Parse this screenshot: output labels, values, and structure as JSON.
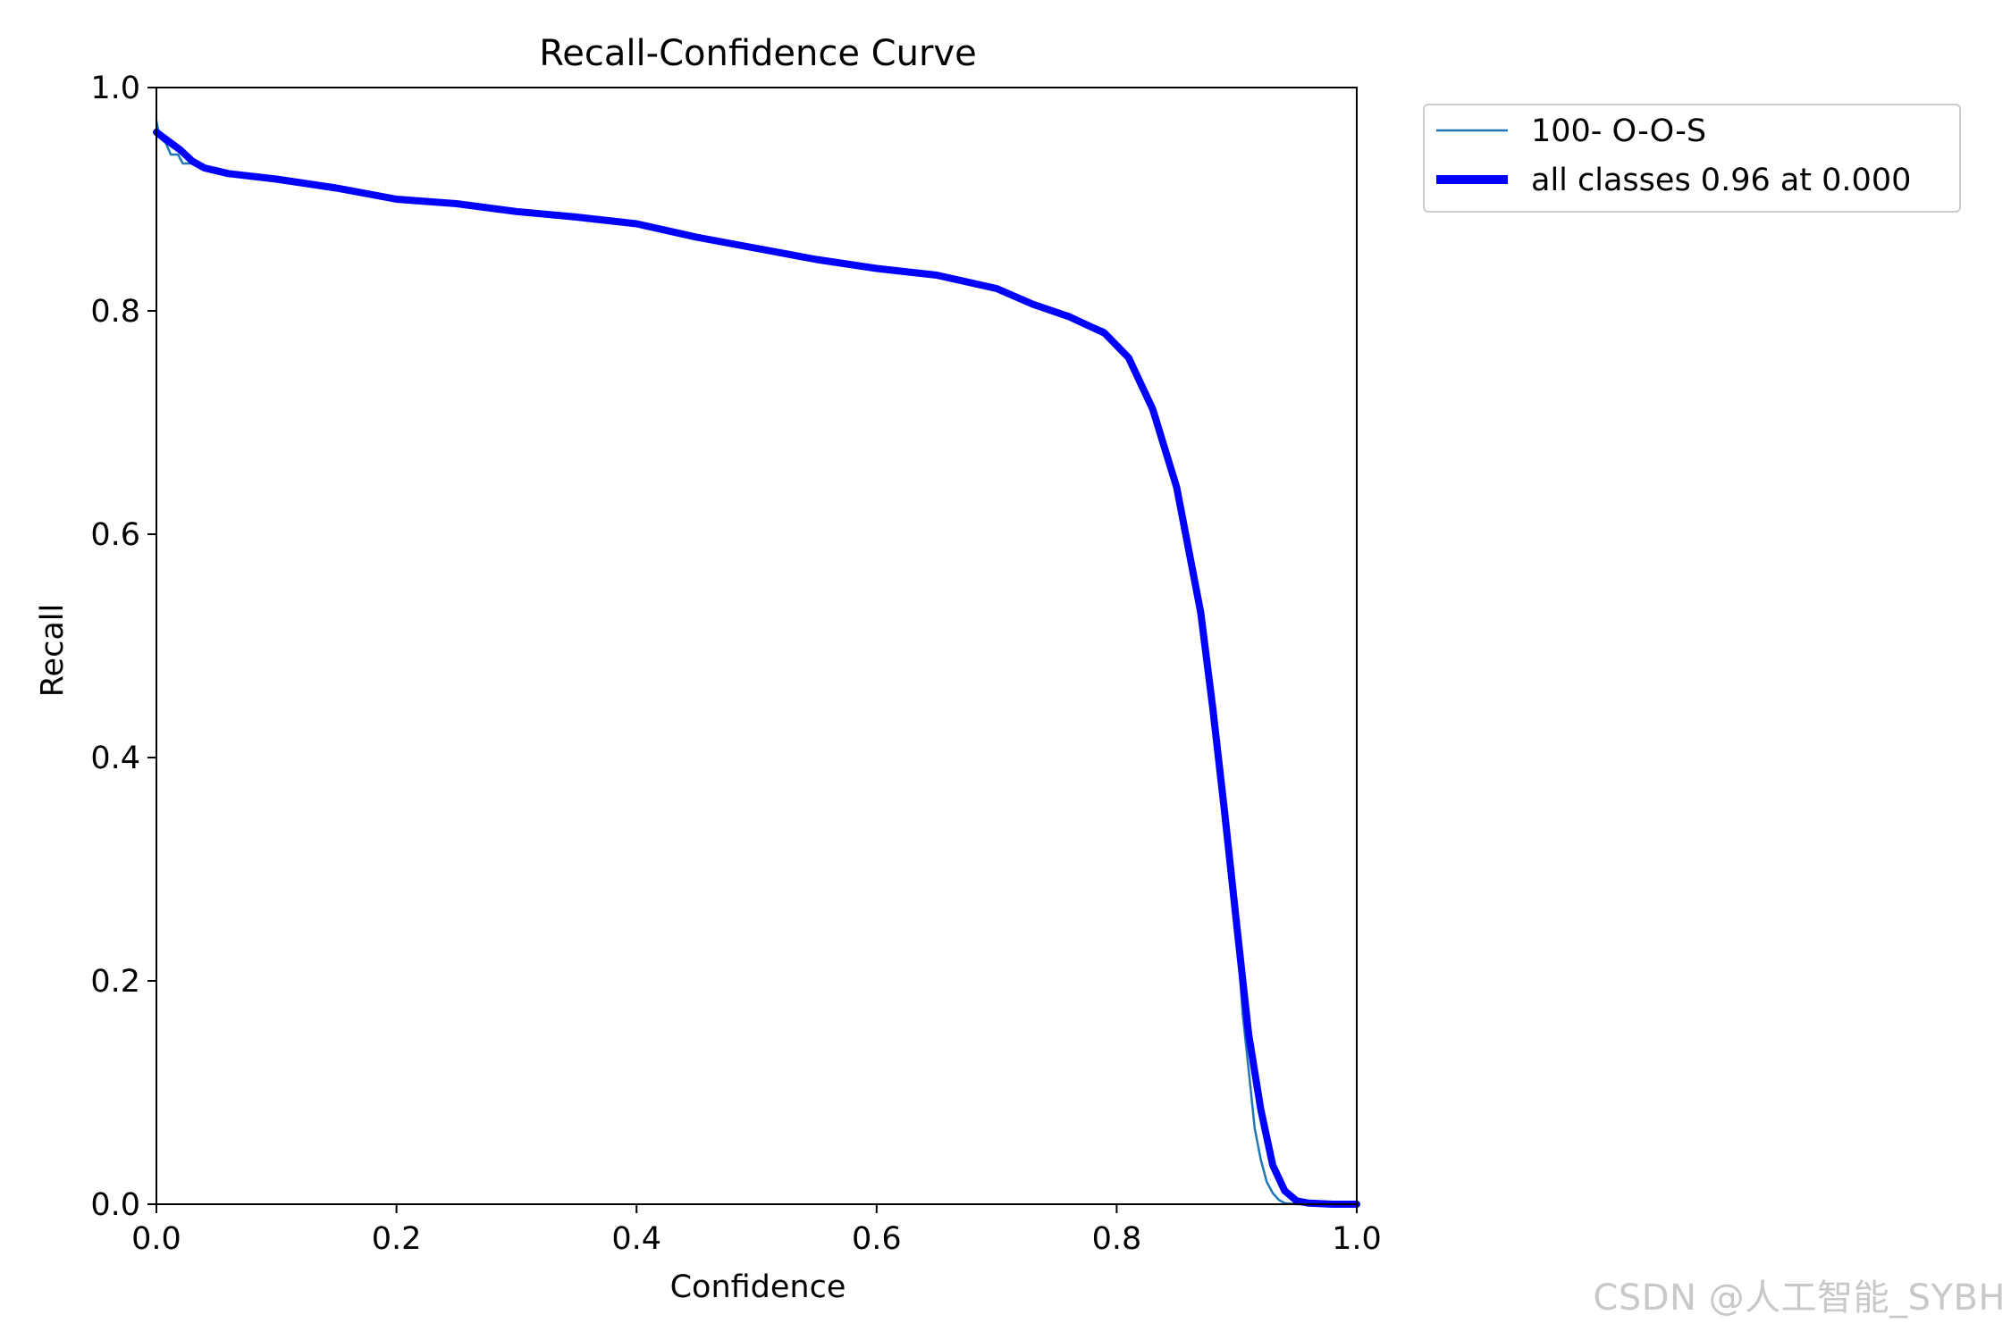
{
  "chart_data": {
    "type": "line",
    "title": "Recall-Confidence Curve",
    "xlabel": "Confidence",
    "ylabel": "Recall",
    "xlim": [
      0,
      1
    ],
    "ylim": [
      0,
      1
    ],
    "x_ticks": [
      "0.0",
      "0.2",
      "0.4",
      "0.6",
      "0.8",
      "1.0"
    ],
    "y_ticks": [
      "0.0",
      "0.2",
      "0.4",
      "0.6",
      "0.8",
      "1.0"
    ],
    "grid": false,
    "legend_position": "outside-top-right",
    "series": [
      {
        "name": "100- O-O-S",
        "color": "#1f77b4",
        "points": [
          [
            0.0,
            0.97
          ],
          [
            0.003,
            0.955
          ],
          [
            0.008,
            0.95
          ],
          [
            0.012,
            0.94
          ],
          [
            0.018,
            0.94
          ],
          [
            0.022,
            0.932
          ],
          [
            0.03,
            0.932
          ],
          [
            0.04,
            0.926
          ],
          [
            0.06,
            0.923
          ],
          [
            0.1,
            0.918
          ],
          [
            0.15,
            0.91
          ],
          [
            0.2,
            0.9
          ],
          [
            0.25,
            0.896
          ],
          [
            0.3,
            0.889
          ],
          [
            0.35,
            0.884
          ],
          [
            0.4,
            0.878
          ],
          [
            0.45,
            0.866
          ],
          [
            0.5,
            0.856
          ],
          [
            0.55,
            0.846
          ],
          [
            0.6,
            0.838
          ],
          [
            0.65,
            0.832
          ],
          [
            0.7,
            0.82
          ],
          [
            0.75,
            0.8
          ],
          [
            0.79,
            0.783
          ],
          [
            0.81,
            0.76
          ],
          [
            0.83,
            0.716
          ],
          [
            0.85,
            0.645
          ],
          [
            0.87,
            0.53
          ],
          [
            0.88,
            0.445
          ],
          [
            0.89,
            0.35
          ],
          [
            0.9,
            0.245
          ],
          [
            0.905,
            0.17
          ],
          [
            0.91,
            0.12
          ],
          [
            0.915,
            0.068
          ],
          [
            0.92,
            0.04
          ],
          [
            0.925,
            0.02
          ],
          [
            0.93,
            0.01
          ],
          [
            0.935,
            0.004
          ],
          [
            0.94,
            0.001
          ],
          [
            0.95,
            0.0
          ],
          [
            1.0,
            0.0
          ]
        ]
      },
      {
        "name": "all classes 0.96 at 0.000",
        "color": "#0000ff",
        "points": [
          [
            0.0,
            0.96
          ],
          [
            0.01,
            0.952
          ],
          [
            0.02,
            0.944
          ],
          [
            0.03,
            0.934
          ],
          [
            0.04,
            0.928
          ],
          [
            0.06,
            0.923
          ],
          [
            0.1,
            0.918
          ],
          [
            0.15,
            0.91
          ],
          [
            0.2,
            0.9
          ],
          [
            0.25,
            0.896
          ],
          [
            0.3,
            0.889
          ],
          [
            0.35,
            0.884
          ],
          [
            0.4,
            0.878
          ],
          [
            0.45,
            0.866
          ],
          [
            0.5,
            0.856
          ],
          [
            0.55,
            0.846
          ],
          [
            0.6,
            0.838
          ],
          [
            0.65,
            0.832
          ],
          [
            0.7,
            0.82
          ],
          [
            0.73,
            0.806
          ],
          [
            0.76,
            0.795
          ],
          [
            0.79,
            0.78
          ],
          [
            0.81,
            0.758
          ],
          [
            0.83,
            0.712
          ],
          [
            0.85,
            0.642
          ],
          [
            0.87,
            0.53
          ],
          [
            0.88,
            0.445
          ],
          [
            0.89,
            0.35
          ],
          [
            0.9,
            0.25
          ],
          [
            0.91,
            0.152
          ],
          [
            0.92,
            0.085
          ],
          [
            0.93,
            0.035
          ],
          [
            0.94,
            0.012
          ],
          [
            0.95,
            0.003
          ],
          [
            0.96,
            0.001
          ],
          [
            0.98,
            0.0
          ],
          [
            1.0,
            0.0
          ]
        ]
      }
    ]
  },
  "watermark": "CSDN @人工智能_SYBH"
}
